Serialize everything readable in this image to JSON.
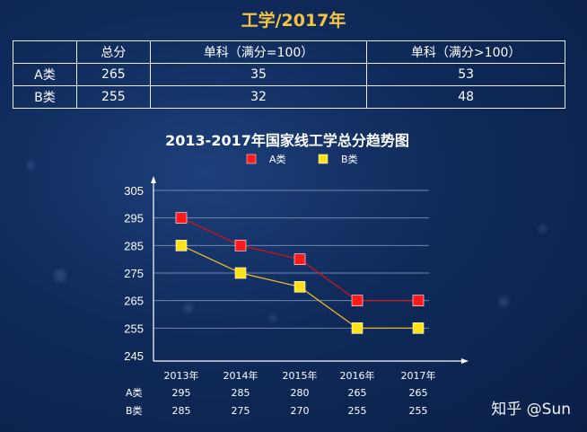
{
  "page_title": "工学/2017年",
  "table": {
    "headers": [
      "",
      "总分",
      "单科（满分=100）",
      "单科（满分>100）"
    ],
    "rows": [
      [
        "A类",
        "265",
        "35",
        "53"
      ],
      [
        "B类",
        "255",
        "32",
        "48"
      ]
    ]
  },
  "chart_data": {
    "type": "line",
    "title": "2013-2017年国家线工学总分趋势图",
    "categories": [
      "2013年",
      "2014年",
      "2015年",
      "2016年",
      "2017年"
    ],
    "series": [
      {
        "name": "A类",
        "values": [
          295,
          285,
          280,
          265,
          265
        ],
        "color": "#e01010",
        "marker": "#ff1a1a"
      },
      {
        "name": "B类",
        "values": [
          285,
          275,
          270,
          255,
          255
        ],
        "color": "#f0c020",
        "marker": "#ffe21a"
      }
    ],
    "ylim": [
      245,
      305
    ],
    "yticks": [
      305,
      295,
      285,
      275,
      265,
      255,
      245
    ],
    "grid": true,
    "legend": "top"
  },
  "watermark": "知乎 @Sun"
}
